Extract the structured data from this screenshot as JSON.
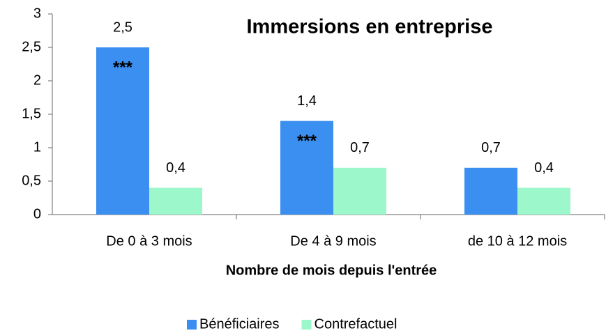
{
  "chart_data": {
    "type": "bar",
    "title": "Immersions en entreprise",
    "x_label": "Nombre de mois depuis l'entrée",
    "categories": [
      "De 0 à 3 mois",
      "De 4 à 9 mois",
      "de 10 à 12 mois"
    ],
    "series": [
      {
        "name": "Bénéficiaires",
        "color": "#3a8ff0",
        "values": [
          2.5,
          1.4,
          0.7
        ],
        "value_labels": [
          "2,5",
          "1,4",
          "0,7"
        ],
        "annotations": [
          "***",
          "***",
          null
        ]
      },
      {
        "name": "Contrefactuel",
        "color": "#9cf8ca",
        "values": [
          0.4,
          0.7,
          0.4
        ],
        "value_labels": [
          "0,4",
          "0,7",
          "0,4"
        ]
      }
    ],
    "ylim": [
      0,
      3
    ],
    "yticks": [
      0,
      {
        "value": 0.5,
        "label": "0,5"
      },
      1,
      {
        "value": 1.5,
        "label": "1,5"
      },
      2,
      {
        "value": 2.5,
        "label": "2,5"
      },
      3
    ],
    "grid": false,
    "legend": "bottom"
  }
}
